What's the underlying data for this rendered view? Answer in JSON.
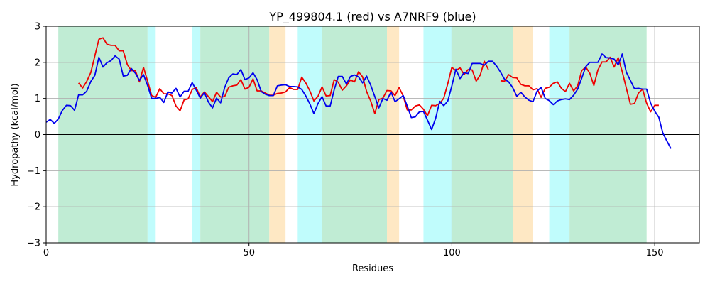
{
  "chart_data": {
    "type": "line",
    "title": "YP_499804.1 (red) vs A7NRF9 (blue)",
    "xlabel": "Residues",
    "ylabel": "Hydropathy (kcal/mol)",
    "xlim": [
      0,
      161
    ],
    "ylim": [
      -3,
      3
    ],
    "xticks": [
      0,
      50,
      100,
      150
    ],
    "yticks": [
      -3,
      -2,
      -1,
      0,
      1,
      2,
      3
    ],
    "grid": true,
    "legend": "none",
    "colors": {
      "red": "#ee0000",
      "blue": "#0000ee",
      "green_band": "#c0ecd4",
      "cyan_band": "#c0fcfc",
      "orange_band": "#fee8c4",
      "grid": "#b0b0b0"
    },
    "bands": [
      {
        "x0": 3,
        "x1": 25,
        "color": "green"
      },
      {
        "x0": 25,
        "x1": 27,
        "color": "cyan"
      },
      {
        "x0": 36,
        "x1": 38,
        "color": "cyan"
      },
      {
        "x0": 38,
        "x1": 55,
        "color": "green"
      },
      {
        "x0": 55,
        "x1": 59,
        "color": "orange"
      },
      {
        "x0": 62,
        "x1": 68,
        "color": "cyan"
      },
      {
        "x0": 68,
        "x1": 84,
        "color": "green"
      },
      {
        "x0": 84,
        "x1": 87,
        "color": "orange"
      },
      {
        "x0": 93,
        "x1": 100,
        "color": "cyan"
      },
      {
        "x0": 100,
        "x1": 115,
        "color": "green"
      },
      {
        "x0": 115,
        "x1": 120,
        "color": "orange"
      },
      {
        "x0": 124,
        "x1": 129,
        "color": "cyan"
      },
      {
        "x0": 129,
        "x1": 148,
        "color": "green"
      }
    ],
    "series": [
      {
        "color": "red",
        "x_start": 8,
        "values": [
          1.43,
          1.29,
          1.47,
          1.72,
          2.18,
          2.64,
          2.68,
          2.5,
          2.47,
          2.47,
          2.32,
          2.32,
          1.94,
          1.77,
          1.77,
          1.46,
          1.86,
          1.48,
          1.08,
          1.03,
          1.27,
          1.13,
          1.13,
          1.08,
          0.79,
          0.66,
          0.96,
          0.99,
          1.25,
          1.3,
          1.04,
          1.18,
          1.05,
          0.91,
          1.17,
          1.04,
          1.05,
          1.31,
          1.35,
          1.37,
          1.52,
          1.26,
          1.31,
          1.54,
          1.21,
          1.21,
          1.15,
          1.09,
          1.09,
          1.14,
          1.15,
          1.18,
          1.3,
          1.25,
          1.25,
          1.59,
          1.43,
          1.21,
          0.93,
          1.06,
          1.32,
          1.07,
          1.08,
          1.52,
          1.45,
          1.23,
          1.35,
          1.51,
          1.46,
          1.74,
          1.6,
          1.19,
          0.93,
          0.58,
          0.97,
          1.01,
          1.22,
          1.21,
          1.08,
          1.3,
          1.07,
          0.68,
          0.68,
          0.79,
          0.82,
          0.7,
          0.52,
          0.81,
          0.8,
          0.86,
          1.01,
          1.41,
          1.86,
          1.77,
          1.85,
          1.66,
          1.8,
          1.79,
          1.48,
          1.65,
          2.03,
          1.8,
          null,
          null,
          1.49,
          1.48,
          1.66,
          1.58,
          1.57,
          1.39,
          1.35,
          1.35,
          1.24,
          1.27,
          1.03,
          1.28,
          1.31,
          1.42,
          1.46,
          1.28,
          1.19,
          1.42,
          1.21,
          1.35,
          1.77,
          1.87,
          1.7,
          1.36,
          1.79,
          2.01,
          2.01,
          2.14,
          1.87,
          2.13,
          1.74,
          1.29,
          0.84,
          0.86,
          1.15,
          1.26,
          0.87,
          0.63,
          0.81,
          0.81
        ]
      },
      {
        "color": "blue",
        "x_start": 0,
        "values": [
          0.34,
          0.42,
          0.31,
          0.43,
          0.67,
          0.81,
          0.8,
          0.67,
          1.1,
          1.1,
          1.2,
          1.47,
          1.64,
          2.14,
          1.87,
          1.99,
          2.05,
          2.18,
          2.09,
          1.62,
          1.64,
          1.83,
          1.7,
          1.5,
          1.66,
          1.36,
          1.0,
          1.0,
          1.03,
          0.89,
          1.18,
          1.15,
          1.28,
          1.04,
          1.2,
          1.2,
          1.44,
          1.23,
          1.01,
          1.16,
          0.9,
          0.74,
          1.01,
          0.88,
          1.3,
          1.57,
          1.68,
          1.66,
          1.8,
          1.52,
          1.57,
          1.71,
          1.52,
          1.19,
          1.12,
          1.08,
          1.08,
          1.35,
          1.37,
          1.38,
          1.33,
          1.33,
          1.32,
          1.25,
          1.07,
          0.85,
          0.58,
          0.86,
          1.05,
          0.79,
          0.79,
          1.24,
          1.61,
          1.61,
          1.4,
          1.61,
          1.65,
          1.6,
          1.43,
          1.62,
          1.37,
          1.05,
          0.74,
          1.0,
          0.95,
          1.18,
          0.91,
          0.99,
          1.08,
          0.79,
          0.47,
          0.49,
          0.63,
          0.64,
          0.4,
          0.14,
          0.45,
          0.92,
          0.8,
          0.93,
          1.35,
          1.81,
          1.55,
          1.72,
          1.69,
          1.97,
          1.97,
          1.97,
          1.92,
          2.03,
          2.03,
          1.9,
          1.73,
          1.53,
          1.46,
          1.3,
          1.06,
          1.17,
          1.04,
          0.95,
          0.91,
          1.2,
          1.31,
          1.0,
          0.94,
          0.83,
          0.93,
          0.97,
          0.99,
          0.97,
          1.09,
          1.26,
          1.56,
          1.88,
          2.0,
          2.0,
          2.0,
          2.23,
          2.13,
          2.12,
          2.09,
          1.93,
          2.23,
          1.73,
          1.5,
          1.27,
          1.28,
          1.26,
          1.26,
          0.87,
          0.65,
          0.48,
          0.04,
          -0.18,
          -0.39
        ]
      }
    ]
  }
}
